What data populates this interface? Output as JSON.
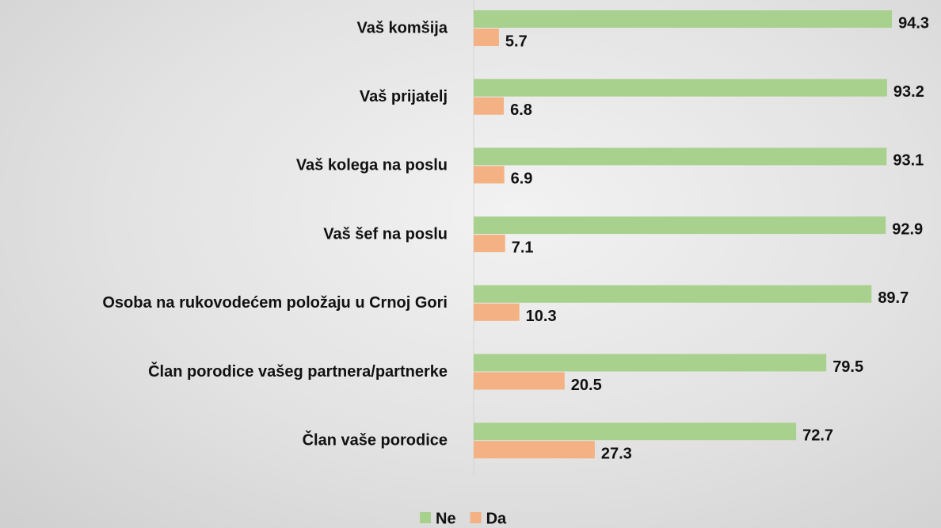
{
  "chart_data": {
    "type": "hbar",
    "categories": [
      "Vaš komšija",
      "Vaš prijatelj",
      "Vaš kolega na poslu",
      "Vaš šef na poslu",
      "Osoba na rukovodećem položaju u Crnoj Gori",
      "Član porodice vašeg partnera/partnerke",
      "Član vaše porodice"
    ],
    "series": [
      {
        "name": "Ne",
        "color": "#a9d18e",
        "values": [
          94.3,
          93.2,
          93.1,
          92.9,
          89.7,
          79.5,
          72.7
        ]
      },
      {
        "name": "Da",
        "color": "#f4b183",
        "values": [
          5.7,
          6.8,
          6.9,
          7.1,
          10.3,
          20.5,
          27.3
        ]
      }
    ],
    "xlim": [
      0,
      100
    ],
    "legend": "bottom"
  }
}
